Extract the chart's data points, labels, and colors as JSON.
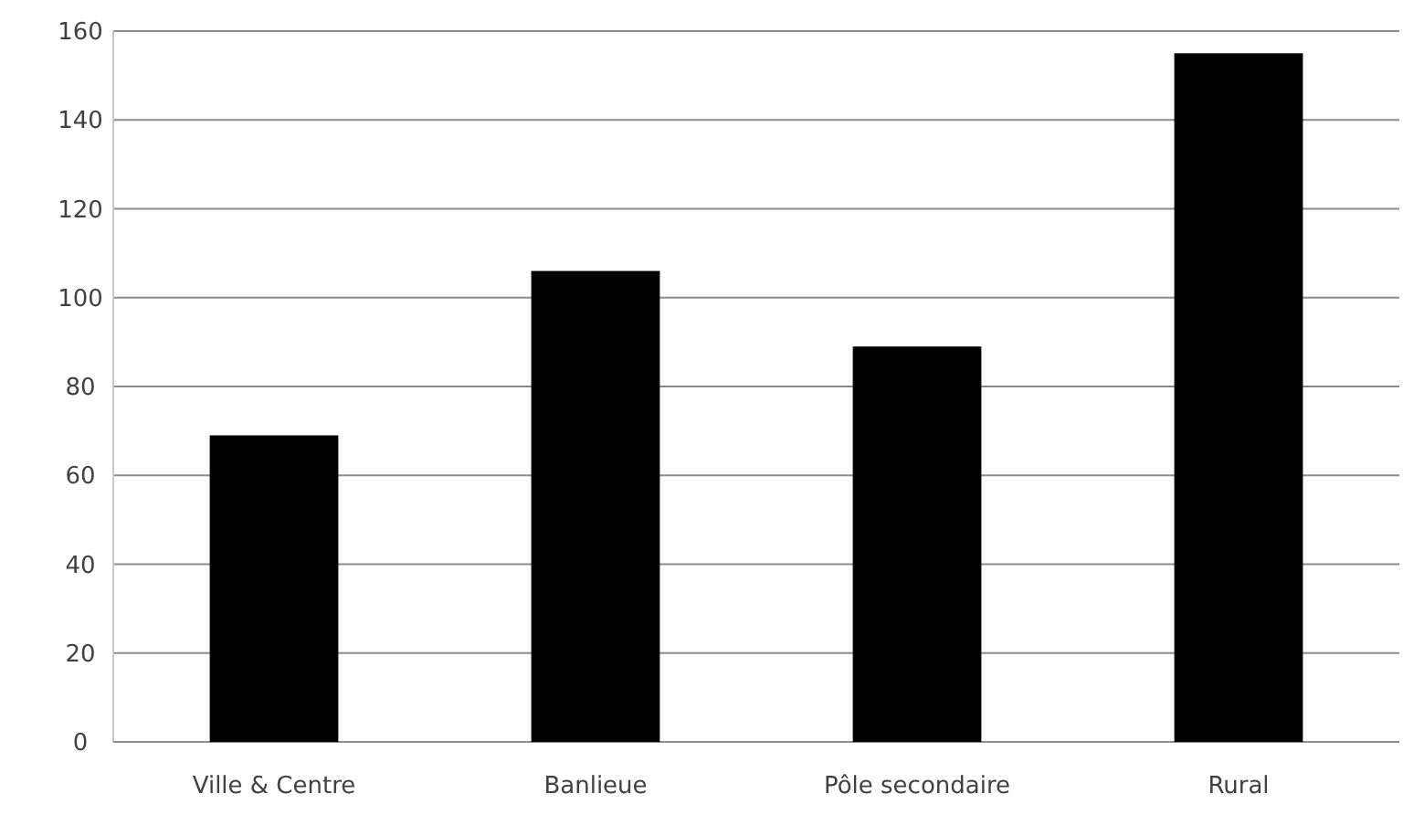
{
  "chart_data": {
    "type": "bar",
    "categories": [
      "Ville & Centre",
      "Banlieue",
      "Pôle secondaire",
      "Rural"
    ],
    "values": [
      69,
      106,
      89,
      155
    ],
    "color": "#000000",
    "ylim": [
      0,
      160
    ],
    "yticks": [
      0,
      20,
      40,
      60,
      80,
      100,
      120,
      140,
      160
    ],
    "grid": "y"
  }
}
